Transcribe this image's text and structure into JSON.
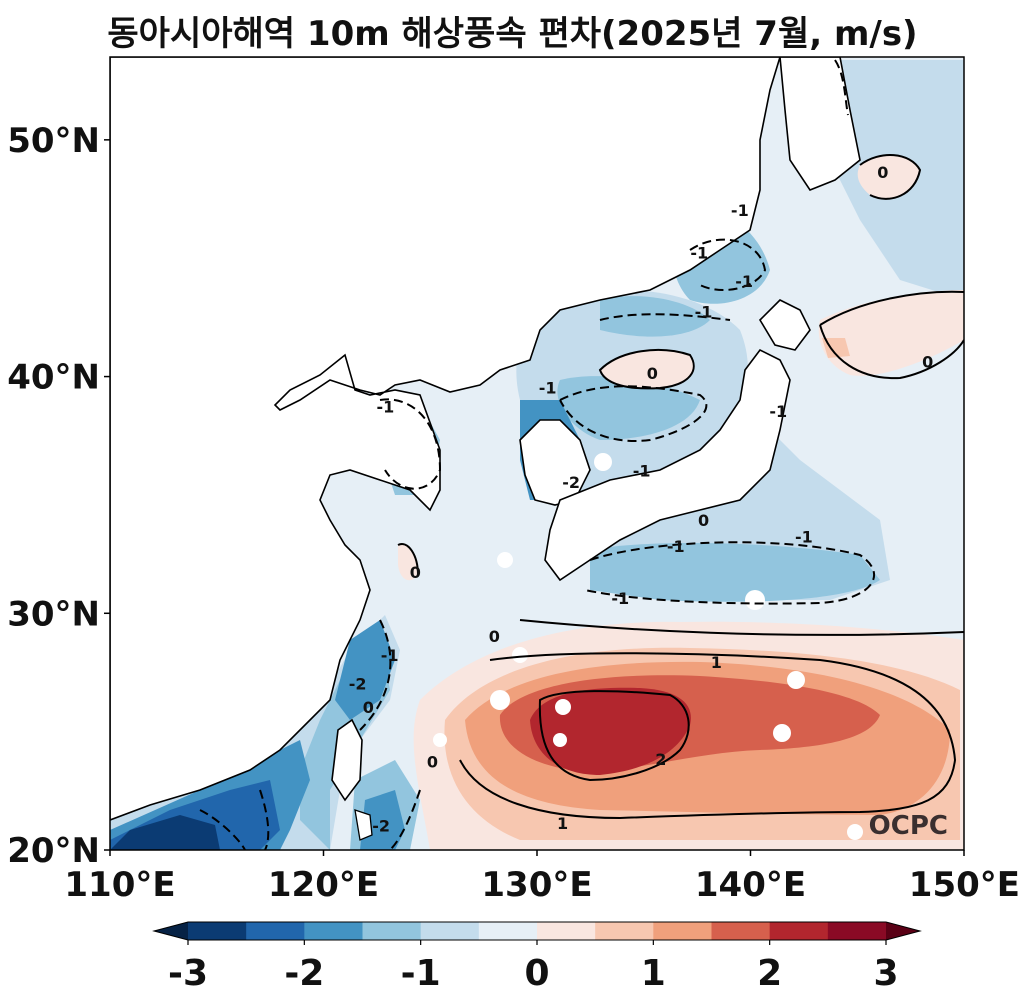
{
  "title": "동아시아해역 10m 해상풍속 편차(2025년 7월, m/s)",
  "logo": "OCPC",
  "map": {
    "lon_range": [
      110,
      150
    ],
    "lat_range": [
      20,
      53.5
    ],
    "lon_ticks": [
      {
        "value": 110,
        "label": "110°E"
      },
      {
        "value": 120,
        "label": "120°E"
      },
      {
        "value": 130,
        "label": "130°E"
      },
      {
        "value": 140,
        "label": "140°E"
      },
      {
        "value": 150,
        "label": "150°E"
      }
    ],
    "lat_ticks": [
      {
        "value": 20,
        "label": "20°N"
      },
      {
        "value": 30,
        "label": "30°N"
      },
      {
        "value": 40,
        "label": "40°N"
      },
      {
        "value": 50,
        "label": "50°N"
      }
    ]
  },
  "colorbar": {
    "min": -3,
    "max": 3,
    "step": 0.5,
    "extend": "both",
    "colors": [
      "#0b3b73",
      "#2166ac",
      "#4393c3",
      "#92c5de",
      "#c4dcec",
      "#e6eff6",
      "#f9e6e0",
      "#f7c7b0",
      "#f0a07c",
      "#d6604d",
      "#b2262e",
      "#8a0a25"
    ],
    "under_color": "#062245",
    "over_color": "#5a0015",
    "ticks": [
      {
        "value": -3,
        "label": "-3"
      },
      {
        "value": -2,
        "label": "-2"
      },
      {
        "value": -1,
        "label": "-1"
      },
      {
        "value": 0,
        "label": "0"
      },
      {
        "value": 1,
        "label": "1"
      },
      {
        "value": 2,
        "label": "2"
      },
      {
        "value": 3,
        "label": "3"
      }
    ]
  },
  "contour_labels": [
    {
      "text": "0",
      "lon": 146.2,
      "lat": 48.6
    },
    {
      "text": "-1",
      "lon": 139.5,
      "lat": 47.0
    },
    {
      "text": "-1",
      "lon": 137.6,
      "lat": 45.2
    },
    {
      "text": "-1",
      "lon": 139.7,
      "lat": 44.0
    },
    {
      "text": "-1",
      "lon": 137.8,
      "lat": 42.7
    },
    {
      "text": "0",
      "lon": 135.4,
      "lat": 40.1
    },
    {
      "text": "0",
      "lon": 148.3,
      "lat": 40.6
    },
    {
      "text": "-1",
      "lon": 130.5,
      "lat": 39.5
    },
    {
      "text": "-1",
      "lon": 141.3,
      "lat": 38.5
    },
    {
      "text": "-1",
      "lon": 122.9,
      "lat": 38.7
    },
    {
      "text": "-2",
      "lon": 131.6,
      "lat": 35.5
    },
    {
      "text": "-1",
      "lon": 134.9,
      "lat": 36.0
    },
    {
      "text": "0",
      "lon": 137.8,
      "lat": 33.9
    },
    {
      "text": "-1",
      "lon": 136.5,
      "lat": 32.8
    },
    {
      "text": "-1",
      "lon": 142.5,
      "lat": 33.2
    },
    {
      "text": "0",
      "lon": 124.3,
      "lat": 31.7
    },
    {
      "text": "-1",
      "lon": 133.9,
      "lat": 30.6
    },
    {
      "text": "0",
      "lon": 128.0,
      "lat": 29.0
    },
    {
      "text": "-1",
      "lon": 123.1,
      "lat": 28.2
    },
    {
      "text": "1",
      "lon": 138.4,
      "lat": 27.9
    },
    {
      "text": "-2",
      "lon": 121.6,
      "lat": 27.0
    },
    {
      "text": "0",
      "lon": 122.1,
      "lat": 26.0
    },
    {
      "text": "0",
      "lon": 125.1,
      "lat": 23.7
    },
    {
      "text": "2",
      "lon": 135.8,
      "lat": 23.8
    },
    {
      "text": "-2",
      "lon": 122.7,
      "lat": 21.0
    },
    {
      "text": "1",
      "lon": 131.2,
      "lat": 21.1
    }
  ]
}
